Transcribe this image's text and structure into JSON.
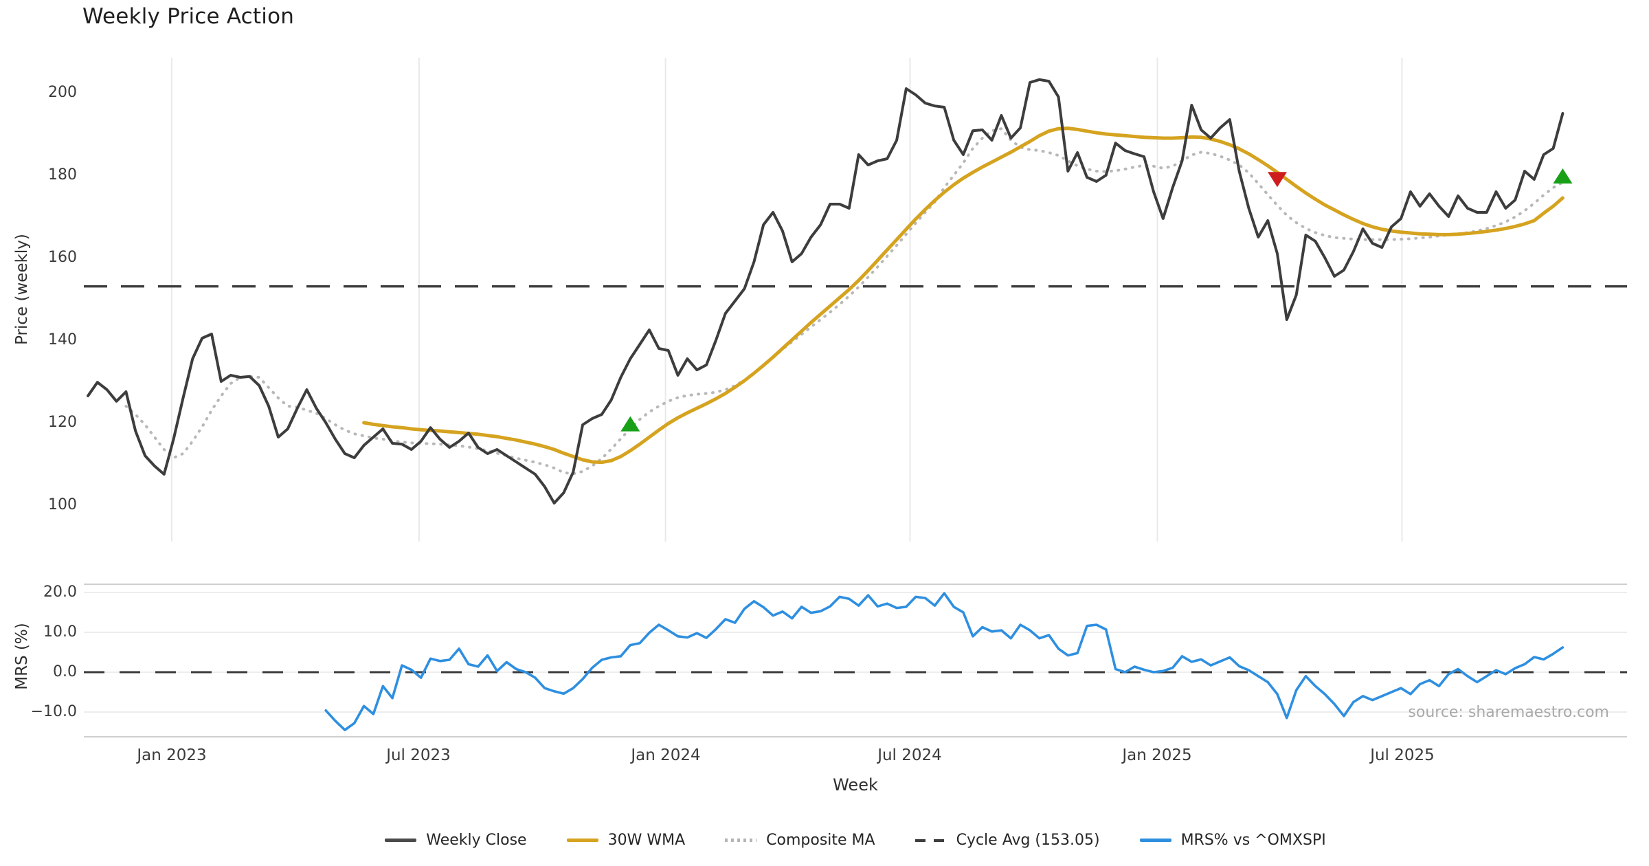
{
  "title": "Weekly Price Action",
  "source_note": "source: sharemaestro.com",
  "legend": [
    {
      "label": "Weekly Close",
      "swatch": "solid-dark"
    },
    {
      "label": "30W WMA",
      "swatch": "solid-gold"
    },
    {
      "label": "Composite MA",
      "swatch": "dotted-gray"
    },
    {
      "label": "Cycle Avg (153.05)",
      "swatch": "dashed-dark"
    },
    {
      "label": "MRS% vs ^OMXSPI",
      "swatch": "solid-blue"
    }
  ],
  "chart_data": {
    "type": "line",
    "title": "Weekly Price Action",
    "x_axis": {
      "label": "Week",
      "ticks": [
        {
          "label": "Jan 2023",
          "week": 8.8
        },
        {
          "label": "Jul 2023",
          "week": 34.8
        },
        {
          "label": "Jan 2024",
          "week": 60.7
        },
        {
          "label": "Jul 2024",
          "week": 86.4
        },
        {
          "label": "Jan 2025",
          "week": 112.4
        },
        {
          "label": "Jul 2025",
          "week": 138.1
        }
      ]
    },
    "price_panel": {
      "ylabel": "Price (weekly)",
      "ylim": [
        91,
        208.5
      ],
      "grid": "vertical-only",
      "yticks": [
        {
          "label": "200",
          "value": 200
        },
        {
          "label": "180",
          "value": 180
        },
        {
          "label": "160",
          "value": 160
        },
        {
          "label": "140",
          "value": 140
        },
        {
          "label": "120",
          "value": 120
        },
        {
          "label": "100",
          "value": 100
        }
      ],
      "cycle_avg": {
        "label": "Cycle Avg (153.05)",
        "value": 153.05,
        "color": "#3d3d3d",
        "style": "dashed"
      },
      "series": [
        {
          "name": "Weekly Close",
          "color": "#3d3d3d",
          "style": "solid",
          "width": 4,
          "start_week": 0,
          "values": [
            126.5,
            129.8,
            128,
            125.2,
            127.5,
            118,
            112,
            109.5,
            107.5,
            116,
            126,
            135.5,
            140.5,
            141.5,
            130,
            131.5,
            131,
            131.2,
            129,
            124,
            116.5,
            118.5,
            123.5,
            128,
            123.5,
            120,
            116,
            112.5,
            111.5,
            114.5,
            116.5,
            118.5,
            115,
            114.8,
            113.5,
            115.5,
            118.8,
            116,
            114,
            115.5,
            117.5,
            114,
            112.5,
            113.5,
            112,
            110.5,
            109,
            107.5,
            104.5,
            100.5,
            103,
            108,
            119.5,
            121,
            122,
            125.5,
            131,
            135.5,
            139,
            142.5,
            138,
            137.5,
            131.5,
            135.5,
            132.8,
            134,
            140,
            146.5,
            149.5,
            152.5,
            159,
            168,
            171,
            166.5,
            159,
            161,
            165,
            168,
            173,
            173,
            172,
            185,
            182.5,
            183.5,
            184,
            188.5,
            201,
            199.5,
            197.5,
            196.8,
            196.5,
            188.5,
            185,
            190.8,
            191,
            188.5,
            194.5,
            189,
            191.5,
            202.5,
            203.2,
            202.8,
            199,
            181,
            185.5,
            179.5,
            178.5,
            180,
            187.8,
            186,
            185.2,
            184.5,
            176,
            169.5,
            177,
            183.5,
            197,
            191,
            189,
            191.5,
            193.5,
            181,
            172,
            165,
            169,
            161,
            145,
            151,
            165.5,
            164,
            160,
            155.5,
            157,
            161.5,
            167,
            163.5,
            162.5,
            167.5,
            169.5,
            176,
            172.5,
            175.5,
            172.5,
            170,
            175,
            172,
            171,
            171,
            176,
            172,
            174,
            181,
            179,
            185,
            186.5,
            195
          ]
        },
        {
          "name": "30W WMA",
          "color": "#d5a31f",
          "style": "solid",
          "width": 5,
          "start_week": 29,
          "values": [
            120,
            119.6,
            119.3,
            119,
            118.8,
            118.5,
            118.3,
            118.1,
            118,
            117.8,
            117.6,
            117.4,
            117.2,
            116.9,
            116.6,
            116.2,
            115.8,
            115.3,
            114.8,
            114.2,
            113.5,
            112.6,
            111.8,
            111,
            110.5,
            110.4,
            110.8,
            111.8,
            113.2,
            114.8,
            116.5,
            118.2,
            119.8,
            121.2,
            122.4,
            123.5,
            124.6,
            125.8,
            127.1,
            128.6,
            130.2,
            132,
            133.9,
            135.9,
            138,
            140.1,
            142.2,
            144.3,
            146.3,
            148.3,
            150.3,
            152.3,
            154.5,
            156.9,
            159.4,
            161.9,
            164.4,
            166.9,
            169.4,
            171.7,
            173.9,
            175.9,
            177.7,
            179.3,
            180.7,
            182,
            183.2,
            184.4,
            185.6,
            186.9,
            188.2,
            189.6,
            190.7,
            191.3,
            191.4,
            191.1,
            190.7,
            190.3,
            190,
            189.8,
            189.6,
            189.4,
            189.2,
            189.1,
            189,
            189,
            189.1,
            189.3,
            189.2,
            188.8,
            188.2,
            187.4,
            186.4,
            185.2,
            183.8,
            182.3,
            180.7,
            179,
            177.3,
            175.7,
            174.2,
            172.8,
            171.6,
            170.4,
            169.3,
            168.3,
            167.5,
            166.9,
            166.5,
            166.2,
            166,
            165.8,
            165.7,
            165.6,
            165.6,
            165.7,
            165.9,
            166.1,
            166.4,
            166.7,
            167.1,
            167.6,
            168.2,
            169,
            170.8,
            172.5,
            174.5
          ]
        },
        {
          "name": "Composite MA",
          "color": "#b8b8b8",
          "style": "dotted",
          "width": 4,
          "start_week": 4,
          "values": [
            124,
            122,
            119.5,
            116.5,
            113.5,
            111.5,
            112.5,
            115.5,
            119,
            123,
            126.5,
            129.5,
            131,
            131.2,
            131,
            128.5,
            126,
            124,
            123.8,
            123,
            122.3,
            121,
            119.5,
            118.2,
            117.3,
            116.8,
            116.3,
            116,
            115.6,
            115.3,
            115.1,
            115,
            114.9,
            114.8,
            114.6,
            114.4,
            114.1,
            113.7,
            113.2,
            112.6,
            112,
            111.4,
            110.9,
            110.4,
            109.8,
            109,
            107.9,
            107.6,
            108.2,
            109.5,
            111.3,
            113.6,
            116.1,
            118.6,
            120.8,
            122.6,
            124,
            125.2,
            126.1,
            126.6,
            126.9,
            127.1,
            127.4,
            128,
            129,
            130.3,
            131.9,
            133.8,
            135.8,
            137.8,
            139.6,
            141.4,
            143.2,
            145,
            146.8,
            148.7,
            150.7,
            152.9,
            155.3,
            157.8,
            160.4,
            163,
            165.7,
            168.4,
            171,
            173.5,
            177,
            180,
            183,
            186.5,
            189,
            190.8,
            191.3,
            188.5,
            186.8,
            186.2,
            186,
            185.5,
            184.8,
            183.5,
            182.3,
            181.5,
            181,
            180.9,
            181.1,
            181.5,
            182,
            182.4,
            182.2,
            181.7,
            182.2,
            183.5,
            184.9,
            185.6,
            185.3,
            184.6,
            183.7,
            182.5,
            180.6,
            178,
            175.3,
            172.7,
            170.3,
            168.5,
            167.1,
            166.1,
            165.4,
            164.9,
            164.7,
            164.5,
            164.4,
            164.4,
            164.4,
            164.4,
            164.5,
            164.6,
            164.8,
            165,
            165.3,
            165.5,
            165.8,
            166.1,
            166.5,
            167.1,
            167.8,
            168.7,
            169.9,
            171.4,
            173.2,
            175.2,
            177,
            178.3
          ]
        }
      ],
      "markers": [
        {
          "week": 57,
          "price": 119.4,
          "direction": "up",
          "color": "#18a018"
        },
        {
          "week": 125,
          "price": 179.3,
          "direction": "down",
          "color": "#cf1d1d"
        },
        {
          "week": 155,
          "price": 179.5,
          "direction": "up",
          "color": "#18a018"
        }
      ]
    },
    "mrs_panel": {
      "ylabel": "MRS (%)",
      "ylim": [
        -16,
        22
      ],
      "grid": "horizontal-only",
      "yticks": [
        {
          "label": "20.0",
          "value": 20
        },
        {
          "label": "10.0",
          "value": 10
        },
        {
          "label": "0.0",
          "value": 0
        },
        {
          "label": "−10.0",
          "value": -10
        }
      ],
      "zero_line": {
        "value": 0,
        "color": "#3a3a3a",
        "style": "dashed"
      },
      "series": [
        {
          "name": "MRS% vs ^OMXSPI",
          "color": "#2e8fe0",
          "style": "solid",
          "width": 3.6,
          "start_week": 25,
          "values": [
            -9.6,
            -12.2,
            -14.5,
            -12.8,
            -8.5,
            -10.5,
            -3.5,
            -6.5,
            1.7,
            0.6,
            -1.4,
            3.4,
            2.8,
            3.1,
            5.9,
            2.0,
            1.4,
            4.2,
            0.3,
            2.5,
            0.8,
            0.0,
            -1.4,
            -4.0,
            -4.8,
            -5.4,
            -4.0,
            -1.7,
            1.1,
            3.1,
            3.7,
            4.0,
            6.8,
            7.3,
            9.9,
            11.9,
            10.5,
            9.0,
            8.7,
            9.8,
            8.6,
            10.8,
            13.3,
            12.4,
            15.9,
            17.8,
            16.3,
            14.2,
            15.2,
            13.5,
            16.4,
            14.9,
            15.3,
            16.5,
            18.9,
            18.4,
            16.7,
            19.3,
            16.5,
            17.2,
            16.1,
            16.4,
            18.9,
            18.6,
            16.7,
            19.8,
            16.4,
            15.0,
            9.0,
            11.3,
            10.2,
            10.5,
            8.5,
            11.9,
            10.5,
            8.5,
            9.3,
            5.9,
            4.2,
            4.8,
            11.6,
            11.9,
            10.7,
            0.8,
            0.0,
            1.4,
            0.6,
            0.0,
            0.3,
            1.1,
            4.0,
            2.6,
            3.2,
            1.7,
            2.7,
            3.7,
            1.5,
            0.5,
            -1.0,
            -2.5,
            -5.5,
            -11.5,
            -4.5,
            -1.0,
            -3.5,
            -5.5,
            -8.0,
            -11.0,
            -7.5,
            -6.0,
            -7.0,
            -6.0,
            -5.0,
            -4.0,
            -5.5,
            -3.0,
            -2.0,
            -3.5,
            -0.5,
            0.8,
            -1.0,
            -2.5,
            -1.0,
            0.5,
            -0.5,
            1.0,
            2.0,
            3.8,
            3.2,
            4.6,
            6.2
          ]
        }
      ]
    }
  }
}
